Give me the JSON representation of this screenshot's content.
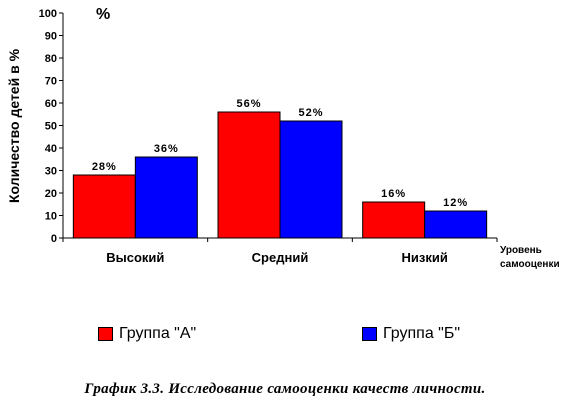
{
  "chart_data": {
    "type": "bar",
    "categories": [
      "Высокий",
      "Средний",
      "Низкий"
    ],
    "series": [
      {
        "name": "Группа \"А\"",
        "color": "#ff0000",
        "values": [
          28,
          56,
          16
        ],
        "labels": [
          "28%",
          "56%",
          "16%"
        ]
      },
      {
        "name": "Группа \"Б\"",
        "color": "#0000ff",
        "values": [
          36,
          52,
          12
        ],
        "labels": [
          "36%",
          "52%",
          "12%"
        ]
      }
    ],
    "ylabel": "Количество детей в %",
    "ylabel_extra": "%",
    "xlabel_line1": "Уровень",
    "xlabel_line2": "самооценки",
    "ylim": [
      0,
      100
    ],
    "yticks": [
      "0",
      "10",
      "20",
      "30",
      "40",
      "50",
      "60",
      "70",
      "80",
      "90",
      "100"
    ],
    "grid": false,
    "legend_position": "bottom"
  },
  "caption": "График 3.3. Исследование самооценки качеств личности."
}
